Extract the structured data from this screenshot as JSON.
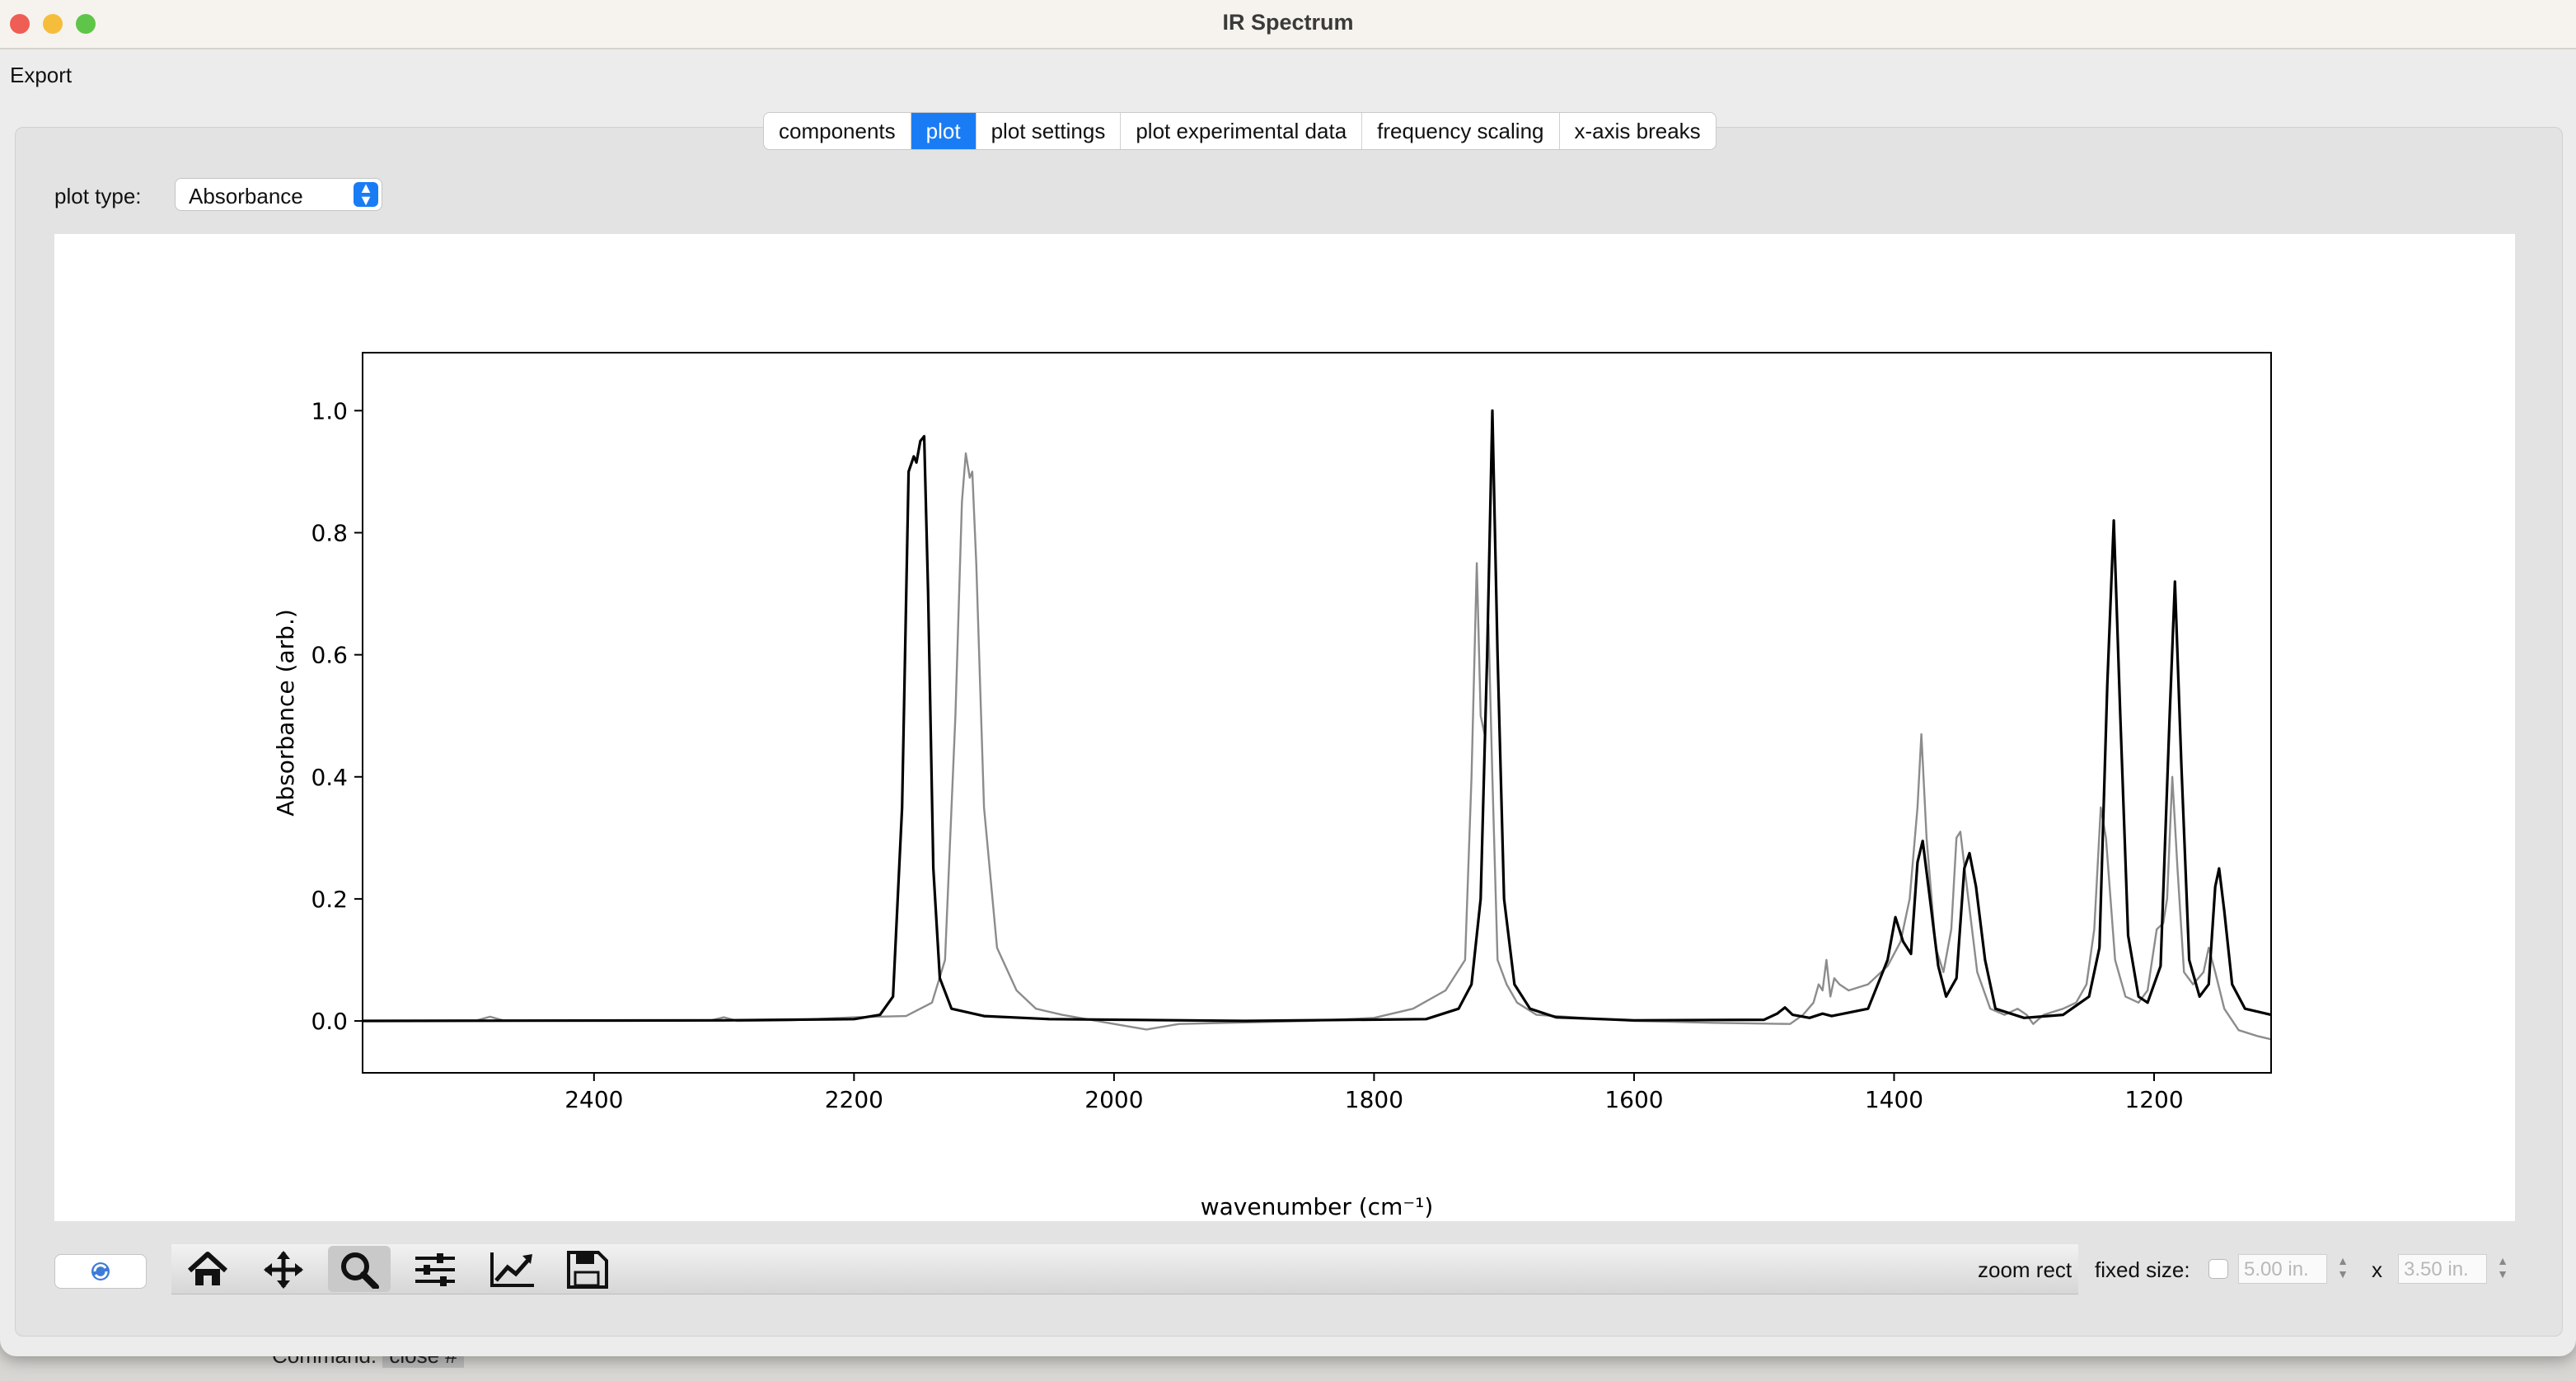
{
  "window": {
    "title": "IR Spectrum"
  },
  "menu": {
    "export": "Export"
  },
  "tabs": [
    {
      "label": "components",
      "active": false
    },
    {
      "label": "plot",
      "active": true
    },
    {
      "label": "plot settings",
      "active": false
    },
    {
      "label": "plot experimental data",
      "active": false
    },
    {
      "label": "frequency scaling",
      "active": false
    },
    {
      "label": "x-axis breaks",
      "active": false
    }
  ],
  "plot_type": {
    "label": "plot type:",
    "value": "Absorbance"
  },
  "toolbar": {
    "buttons": [
      "home-icon",
      "pan-icon",
      "zoom-icon",
      "configure-subplots-icon",
      "edit-axis-icon",
      "save-icon"
    ],
    "active": "zoom-icon",
    "mode": "zoom rect",
    "fixed_size_label": "fixed size:",
    "width": "5.00 in.",
    "height": "3.50 in.",
    "separator": "x"
  },
  "behind": {
    "command_label": "Command:",
    "command_value": "close #"
  },
  "colors": {
    "accent": "#1a7cf5",
    "computed": "#000000",
    "experimental": "#8c8c8c"
  },
  "chart_data": {
    "type": "line",
    "xlabel": "wavenumber (cm⁻¹)",
    "ylabel": "Absorbance (arb.)",
    "xlim": [
      2578,
      1110
    ],
    "ylim": [
      -0.085,
      1.095
    ],
    "x_reversed": true,
    "xticks": [
      2400,
      2200,
      2000,
      1800,
      1600,
      1400,
      1200
    ],
    "yticks": [
      0.0,
      0.2,
      0.4,
      0.6,
      0.8,
      1.0
    ],
    "grid": false,
    "series": [
      {
        "color": "#000000",
        "points": [
          [
            2578,
            0.0
          ],
          [
            2300,
            0.001
          ],
          [
            2200,
            0.003
          ],
          [
            2180,
            0.01
          ],
          [
            2170,
            0.04
          ],
          [
            2163,
            0.35
          ],
          [
            2158,
            0.9
          ],
          [
            2154,
            0.925
          ],
          [
            2152,
            0.915
          ],
          [
            2149,
            0.95
          ],
          [
            2146,
            0.958
          ],
          [
            2143,
            0.7
          ],
          [
            2139,
            0.25
          ],
          [
            2134,
            0.07
          ],
          [
            2125,
            0.02
          ],
          [
            2100,
            0.008
          ],
          [
            2050,
            0.003
          ],
          [
            1900,
            0.0
          ],
          [
            1760,
            0.003
          ],
          [
            1735,
            0.02
          ],
          [
            1725,
            0.06
          ],
          [
            1718,
            0.2
          ],
          [
            1713,
            0.6
          ],
          [
            1709,
            1.0
          ],
          [
            1705,
            0.6
          ],
          [
            1700,
            0.2
          ],
          [
            1692,
            0.06
          ],
          [
            1680,
            0.02
          ],
          [
            1660,
            0.006
          ],
          [
            1600,
            0.001
          ],
          [
            1500,
            0.002
          ],
          [
            1490,
            0.012
          ],
          [
            1484,
            0.022
          ],
          [
            1478,
            0.01
          ],
          [
            1465,
            0.005
          ],
          [
            1455,
            0.012
          ],
          [
            1448,
            0.008
          ],
          [
            1420,
            0.02
          ],
          [
            1405,
            0.1
          ],
          [
            1399,
            0.17
          ],
          [
            1393,
            0.13
          ],
          [
            1387,
            0.11
          ],
          [
            1382,
            0.26
          ],
          [
            1378,
            0.295
          ],
          [
            1373,
            0.21
          ],
          [
            1366,
            0.09
          ],
          [
            1360,
            0.04
          ],
          [
            1352,
            0.07
          ],
          [
            1346,
            0.25
          ],
          [
            1342,
            0.275
          ],
          [
            1337,
            0.22
          ],
          [
            1330,
            0.1
          ],
          [
            1322,
            0.02
          ],
          [
            1300,
            0.005
          ],
          [
            1270,
            0.01
          ],
          [
            1250,
            0.04
          ],
          [
            1242,
            0.12
          ],
          [
            1236,
            0.55
          ],
          [
            1231,
            0.82
          ],
          [
            1226,
            0.5
          ],
          [
            1220,
            0.14
          ],
          [
            1212,
            0.04
          ],
          [
            1205,
            0.03
          ],
          [
            1195,
            0.09
          ],
          [
            1188,
            0.5
          ],
          [
            1184,
            0.72
          ],
          [
            1179,
            0.42
          ],
          [
            1173,
            0.1
          ],
          [
            1165,
            0.04
          ],
          [
            1158,
            0.06
          ],
          [
            1153,
            0.22
          ],
          [
            1150,
            0.25
          ],
          [
            1146,
            0.18
          ],
          [
            1140,
            0.06
          ],
          [
            1130,
            0.02
          ],
          [
            1110,
            0.01
          ]
        ]
      },
      {
        "color": "#8c8c8c",
        "points": [
          [
            2578,
            0.0
          ],
          [
            2490,
            0.001
          ],
          [
            2480,
            0.007
          ],
          [
            2470,
            0.001
          ],
          [
            2310,
            0.001
          ],
          [
            2300,
            0.006
          ],
          [
            2290,
            0.0
          ],
          [
            2250,
            0.001
          ],
          [
            2200,
            0.006
          ],
          [
            2160,
            0.008
          ],
          [
            2140,
            0.03
          ],
          [
            2130,
            0.1
          ],
          [
            2122,
            0.5
          ],
          [
            2117,
            0.85
          ],
          [
            2114,
            0.93
          ],
          [
            2111,
            0.89
          ],
          [
            2109,
            0.9
          ],
          [
            2106,
            0.75
          ],
          [
            2100,
            0.35
          ],
          [
            2090,
            0.12
          ],
          [
            2075,
            0.05
          ],
          [
            2060,
            0.02
          ],
          [
            2040,
            0.01
          ],
          [
            2000,
            -0.005
          ],
          [
            1975,
            -0.014
          ],
          [
            1950,
            -0.005
          ],
          [
            1850,
            0.0
          ],
          [
            1800,
            0.005
          ],
          [
            1770,
            0.02
          ],
          [
            1745,
            0.05
          ],
          [
            1730,
            0.1
          ],
          [
            1725,
            0.4
          ],
          [
            1721,
            0.75
          ],
          [
            1718,
            0.5
          ],
          [
            1715,
            0.47
          ],
          [
            1712,
            0.65
          ],
          [
            1709,
            0.4
          ],
          [
            1705,
            0.1
          ],
          [
            1698,
            0.06
          ],
          [
            1690,
            0.03
          ],
          [
            1675,
            0.01
          ],
          [
            1640,
            0.005
          ],
          [
            1600,
            0.0
          ],
          [
            1540,
            -0.003
          ],
          [
            1480,
            -0.005
          ],
          [
            1470,
            0.01
          ],
          [
            1462,
            0.03
          ],
          [
            1458,
            0.06
          ],
          [
            1455,
            0.05
          ],
          [
            1452,
            0.1
          ],
          [
            1449,
            0.04
          ],
          [
            1446,
            0.07
          ],
          [
            1442,
            0.06
          ],
          [
            1435,
            0.05
          ],
          [
            1420,
            0.06
          ],
          [
            1405,
            0.09
          ],
          [
            1395,
            0.13
          ],
          [
            1388,
            0.2
          ],
          [
            1382,
            0.35
          ],
          [
            1379,
            0.47
          ],
          [
            1375,
            0.3
          ],
          [
            1368,
            0.12
          ],
          [
            1362,
            0.08
          ],
          [
            1356,
            0.15
          ],
          [
            1352,
            0.3
          ],
          [
            1349,
            0.31
          ],
          [
            1344,
            0.22
          ],
          [
            1336,
            0.08
          ],
          [
            1326,
            0.02
          ],
          [
            1315,
            0.01
          ],
          [
            1305,
            0.02
          ],
          [
            1298,
            0.01
          ],
          [
            1293,
            -0.005
          ],
          [
            1285,
            0.01
          ],
          [
            1270,
            0.02
          ],
          [
            1260,
            0.03
          ],
          [
            1252,
            0.06
          ],
          [
            1246,
            0.15
          ],
          [
            1241,
            0.35
          ],
          [
            1237,
            0.3
          ],
          [
            1230,
            0.1
          ],
          [
            1222,
            0.04
          ],
          [
            1212,
            0.03
          ],
          [
            1205,
            0.05
          ],
          [
            1198,
            0.15
          ],
          [
            1193,
            0.16
          ],
          [
            1190,
            0.2
          ],
          [
            1186,
            0.4
          ],
          [
            1182,
            0.25
          ],
          [
            1177,
            0.08
          ],
          [
            1170,
            0.06
          ],
          [
            1162,
            0.08
          ],
          [
            1158,
            0.12
          ],
          [
            1153,
            0.08
          ],
          [
            1146,
            0.02
          ],
          [
            1135,
            -0.015
          ],
          [
            1120,
            -0.025
          ],
          [
            1110,
            -0.03
          ]
        ]
      }
    ]
  }
}
